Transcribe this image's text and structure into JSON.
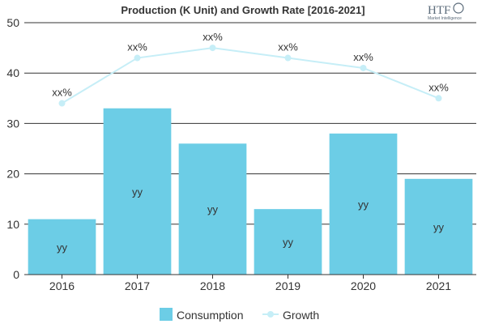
{
  "logo": {
    "main": "HTF",
    "sub": "Market Intelligence"
  },
  "colors": {
    "bar": "#6ccde6",
    "line": "#c6eef7",
    "grid": "#333333",
    "axis": "#333333",
    "text": "#333333"
  },
  "chart_data": {
    "type": "bar",
    "title": "Production (K Unit) and Growth Rate [2016-2021]",
    "categories": [
      "2016",
      "2017",
      "2018",
      "2019",
      "2020",
      "2021"
    ],
    "ylim": [
      0,
      50
    ],
    "yticks": [
      0,
      10,
      20,
      30,
      40,
      50
    ],
    "grid": true,
    "legend": {
      "position": "bottom",
      "items": [
        "Consumption",
        "Growth"
      ]
    },
    "series": [
      {
        "name": "Consumption",
        "type": "bar",
        "values": [
          11,
          33,
          26,
          13,
          28,
          19
        ],
        "labels": [
          "yy",
          "yy",
          "yy",
          "yy",
          "yy",
          "yy"
        ]
      },
      {
        "name": "Growth",
        "type": "line",
        "values": [
          34,
          43,
          45,
          43,
          41,
          35
        ],
        "labels": [
          "xx%",
          "xx%",
          "xx%",
          "xx%",
          "xx%",
          "xx%"
        ]
      }
    ]
  }
}
